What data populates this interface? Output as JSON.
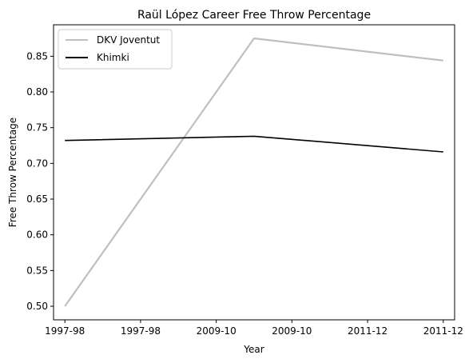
{
  "chart_data": {
    "type": "line",
    "title": "Raül López Career Free Throw Percentage",
    "xlabel": "Year",
    "ylabel": "Free Throw Percentage",
    "x_ticks": [
      "1997-98",
      "1997-98",
      "2009-10",
      "2009-10",
      "2011-12",
      "2011-12"
    ],
    "xlim": [
      -0.15,
      5.15
    ],
    "ylim": [
      0.481,
      0.894
    ],
    "y_ticks": [
      0.5,
      0.55,
      0.6,
      0.65,
      0.7,
      0.75,
      0.8,
      0.85
    ],
    "legend_position": "upper-left",
    "grid": false,
    "series": [
      {
        "name": "DKV Joventut",
        "color": "#bfbfbf",
        "x": [
          0,
          2.5,
          5
        ],
        "y": [
          0.5,
          0.875,
          0.844
        ]
      },
      {
        "name": "Khimki",
        "color": "#000000",
        "x": [
          0,
          2.5,
          5
        ],
        "y": [
          0.732,
          0.738,
          0.716
        ]
      }
    ]
  }
}
